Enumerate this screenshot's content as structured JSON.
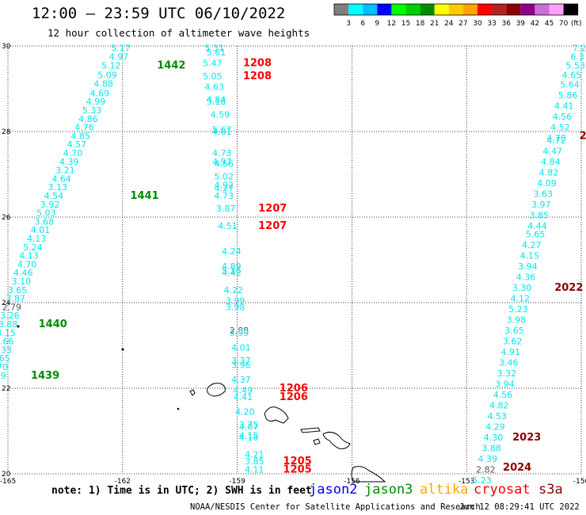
{
  "title": "12:00 – 23:59 UTC 06/10/2022",
  "subtitle": "12 hour collection of altimeter wave heights",
  "colorbar": {
    "colors": [
      "#7f7f7f",
      "#00ffff",
      "#00bfff",
      "#0000ff",
      "#00ff00",
      "#00cd00",
      "#008b00",
      "#ffff00",
      "#ffcc00",
      "#ffa500",
      "#ff0000",
      "#b22222",
      "#8b0000",
      "#8b008b",
      "#c86fd8",
      "#ffa0ff",
      "#000000"
    ],
    "labels": [
      "3",
      "6",
      "9",
      "12",
      "15",
      "18",
      "21",
      "24",
      "27",
      "30",
      "33",
      "36",
      "39",
      "42",
      "45",
      "70"
    ],
    "unit": "(ft)"
  },
  "axes": {
    "lon_ticks": [
      "-165",
      "-162",
      "-159",
      "-156",
      "-153",
      "-150"
    ],
    "lat_ticks": [
      "30",
      "28",
      "26",
      "24",
      "22",
      "20"
    ]
  },
  "footer": {
    "note": "note: 1) Time is in UTC; 2) SWH is in feet",
    "legend": [
      {
        "name": "jason2",
        "color": "#0000ff"
      },
      {
        "name": "jason3",
        "color": "#008b00"
      },
      {
        "name": "altika",
        "color": "#ffa500"
      },
      {
        "name": "cryosat",
        "color": "#ff0000"
      },
      {
        "name": "s3a",
        "color": "#8b0000"
      }
    ],
    "credit": "NOAA/NESDIS Center for Satellite Applications and Research",
    "timestamp": "Jun 12 08:29:41 UTC 2022"
  },
  "chart_data": {
    "type": "scatter",
    "xlim": [
      -165,
      -150
    ],
    "ylim": [
      20,
      30
    ],
    "grid": true,
    "tracks": [
      {
        "satellite": "jason3",
        "color": "#00e5ee",
        "points": [
          {
            "lon": -162.05,
            "lat": 29.95,
            "v": "5.17"
          },
          {
            "lon": -162.1,
            "lat": 29.75,
            "v": "4.97"
          },
          {
            "lon": -162.3,
            "lat": 29.55,
            "v": "5.12"
          },
          {
            "lon": -162.4,
            "lat": 29.32,
            "v": "5.09"
          },
          {
            "lon": -162.5,
            "lat": 29.12,
            "v": "4.88"
          },
          {
            "lon": -162.6,
            "lat": 28.9,
            "v": "4.69"
          },
          {
            "lon": -162.7,
            "lat": 28.7,
            "v": "4.99"
          },
          {
            "lon": -162.8,
            "lat": 28.5,
            "v": "5.33"
          },
          {
            "lon": -162.9,
            "lat": 28.3,
            "v": "4.86"
          },
          {
            "lon": -163.0,
            "lat": 28.1,
            "v": "4.76"
          },
          {
            "lon": -163.1,
            "lat": 27.9,
            "v": "4.85"
          },
          {
            "lon": -163.2,
            "lat": 27.7,
            "v": "4.57"
          },
          {
            "lon": -163.3,
            "lat": 27.5,
            "v": "4.70"
          },
          {
            "lon": -163.4,
            "lat": 27.3,
            "v": "4.39"
          },
          {
            "lon": -163.5,
            "lat": 27.1,
            "v": "3.21"
          },
          {
            "lon": -163.6,
            "lat": 26.9,
            "v": "4.64"
          },
          {
            "lon": -163.7,
            "lat": 26.7,
            "v": "3.13"
          },
          {
            "lon": -163.8,
            "lat": 26.5,
            "v": "4.54"
          },
          {
            "lon": -163.9,
            "lat": 26.3,
            "v": "3.92"
          },
          {
            "lon": -164.0,
            "lat": 26.1,
            "v": "5.03"
          },
          {
            "lon": -164.05,
            "lat": 25.9,
            "v": "3.68"
          },
          {
            "lon": -164.15,
            "lat": 25.7,
            "v": "4.01"
          },
          {
            "lon": -164.25,
            "lat": 25.5,
            "v": "4.13"
          },
          {
            "lon": -164.35,
            "lat": 25.3,
            "v": "5.24"
          },
          {
            "lon": -164.45,
            "lat": 25.1,
            "v": "4.13"
          },
          {
            "lon": -164.5,
            "lat": 24.9,
            "v": "4.70"
          },
          {
            "lon": -164.6,
            "lat": 24.7,
            "v": "4.46"
          },
          {
            "lon": -164.65,
            "lat": 24.5,
            "v": "3.10"
          },
          {
            "lon": -164.75,
            "lat": 24.3,
            "v": "3.65"
          },
          {
            "lon": -164.8,
            "lat": 24.1,
            "v": "3.87"
          },
          {
            "lon": -164.9,
            "lat": 23.9,
            "v": "2.79",
            "gray": true
          },
          {
            "lon": -164.95,
            "lat": 23.7,
            "v": "3.26"
          },
          {
            "lon": -165.0,
            "lat": 23.5,
            "v": "3.88"
          },
          {
            "lon": -165.05,
            "lat": 23.3,
            "v": "3.15"
          },
          {
            "lon": -165.1,
            "lat": 23.1,
            "v": "3.66"
          },
          {
            "lon": -165.15,
            "lat": 22.9,
            "v": "3.33"
          },
          {
            "lon": -165.2,
            "lat": 22.7,
            "v": "3.65"
          },
          {
            "lon": -165.25,
            "lat": 22.5,
            "v": "3.70"
          },
          {
            "lon": -165.3,
            "lat": 22.3,
            "v": "4.29"
          }
        ]
      },
      {
        "satellite": "cryosat",
        "color": "#00e5ee",
        "points": [
          {
            "lon": -159.6,
            "lat": 29.95,
            "v": "5.31"
          },
          {
            "lon": -159.55,
            "lat": 29.85,
            "v": "5.61"
          },
          {
            "lon": -159.65,
            "lat": 29.6,
            "v": "5.47"
          },
          {
            "lon": -159.65,
            "lat": 29.3,
            "v": "5.05"
          },
          {
            "lon": -159.6,
            "lat": 29.05,
            "v": "4.63"
          },
          {
            "lon": -159.55,
            "lat": 28.75,
            "v": "4.84"
          },
          {
            "lon": -159.55,
            "lat": 28.7,
            "v": "5.18"
          },
          {
            "lon": -159.45,
            "lat": 28.4,
            "v": "4.59"
          },
          {
            "lon": -159.4,
            "lat": 28.05,
            "v": "5.67"
          },
          {
            "lon": -159.4,
            "lat": 28.0,
            "v": "4.61"
          },
          {
            "lon": -159.4,
            "lat": 27.5,
            "v": "4.73"
          },
          {
            "lon": -159.4,
            "lat": 27.3,
            "v": "4.97"
          },
          {
            "lon": -159.35,
            "lat": 27.25,
            "v": "4.56"
          },
          {
            "lon": -159.35,
            "lat": 26.95,
            "v": "5.02"
          },
          {
            "lon": -159.35,
            "lat": 26.75,
            "v": "4.92"
          },
          {
            "lon": -159.35,
            "lat": 26.68,
            "v": "4.27"
          },
          {
            "lon": -159.35,
            "lat": 26.5,
            "v": "4.73"
          },
          {
            "lon": -159.3,
            "lat": 26.2,
            "v": "3.87"
          },
          {
            "lon": -159.25,
            "lat": 25.8,
            "v": "4.51"
          },
          {
            "lon": -159.15,
            "lat": 25.2,
            "v": "4.24"
          },
          {
            "lon": -159.15,
            "lat": 24.85,
            "v": "4.89"
          },
          {
            "lon": -159.15,
            "lat": 24.75,
            "v": "5.16"
          },
          {
            "lon": -159.15,
            "lat": 24.7,
            "v": "4.42"
          },
          {
            "lon": -159.1,
            "lat": 24.3,
            "v": "4.22"
          },
          {
            "lon": -159.05,
            "lat": 24.05,
            "v": "3.99"
          },
          {
            "lon": -159.05,
            "lat": 23.9,
            "v": "3.98"
          },
          {
            "lon": -158.95,
            "lat": 23.35,
            "v": "2.88",
            "gray": true
          },
          {
            "lon": -158.95,
            "lat": 23.3,
            "v": "3.99"
          },
          {
            "lon": -158.9,
            "lat": 22.95,
            "v": "4.01"
          },
          {
            "lon": -158.9,
            "lat": 22.65,
            "v": "3.37"
          },
          {
            "lon": -158.9,
            "lat": 22.55,
            "v": "3.96"
          },
          {
            "lon": -158.9,
            "lat": 22.2,
            "v": "4.37"
          },
          {
            "lon": -158.85,
            "lat": 21.95,
            "v": "4.49"
          },
          {
            "lon": -158.85,
            "lat": 21.8,
            "v": "4.41"
          },
          {
            "lon": -158.8,
            "lat": 21.45,
            "v": "4.20"
          },
          {
            "lon": -158.7,
            "lat": 21.15,
            "v": "3.75"
          },
          {
            "lon": -158.7,
            "lat": 21.1,
            "v": "4.07"
          },
          {
            "lon": -158.7,
            "lat": 20.9,
            "v": "4.15"
          },
          {
            "lon": -158.7,
            "lat": 20.85,
            "v": "4.18"
          },
          {
            "lon": -158.55,
            "lat": 20.45,
            "v": "4.21"
          },
          {
            "lon": -158.55,
            "lat": 20.3,
            "v": "3.85"
          },
          {
            "lon": -158.55,
            "lat": 20.1,
            "v": "4.11"
          }
        ]
      },
      {
        "satellite": "s3a",
        "color": "#00e5ee",
        "points": [
          {
            "lon": -150.05,
            "lat": 29.95,
            "v": "7.2"
          },
          {
            "lon": -150.1,
            "lat": 29.75,
            "v": "6.3"
          },
          {
            "lon": -150.15,
            "lat": 29.55,
            "v": "5.53"
          },
          {
            "lon": -150.25,
            "lat": 29.32,
            "v": "4.65"
          },
          {
            "lon": -150.3,
            "lat": 29.1,
            "v": "5.64"
          },
          {
            "lon": -150.35,
            "lat": 28.85,
            "v": "5.86"
          },
          {
            "lon": -150.45,
            "lat": 28.6,
            "v": "4.41"
          },
          {
            "lon": -150.5,
            "lat": 28.35,
            "v": "4.56"
          },
          {
            "lon": -150.55,
            "lat": 28.1,
            "v": "4.52"
          },
          {
            "lon": -150.65,
            "lat": 27.85,
            "v": "4.70"
          },
          {
            "lon": -150.65,
            "lat": 27.8,
            "v": "4.72"
          },
          {
            "lon": -150.75,
            "lat": 27.55,
            "v": "4.47"
          },
          {
            "lon": -150.8,
            "lat": 27.3,
            "v": "4.84"
          },
          {
            "lon": -150.85,
            "lat": 27.05,
            "v": "4.82"
          },
          {
            "lon": -150.9,
            "lat": 26.8,
            "v": "4.09"
          },
          {
            "lon": -151.0,
            "lat": 26.55,
            "v": "3.63"
          },
          {
            "lon": -151.05,
            "lat": 26.3,
            "v": "3.97"
          },
          {
            "lon": -151.1,
            "lat": 26.05,
            "v": "3.85"
          },
          {
            "lon": -151.15,
            "lat": 25.8,
            "v": "4.44"
          },
          {
            "lon": -151.2,
            "lat": 25.6,
            "v": "5.65"
          },
          {
            "lon": -151.3,
            "lat": 25.35,
            "v": "4.27"
          },
          {
            "lon": -151.35,
            "lat": 25.1,
            "v": "4.15"
          },
          {
            "lon": -151.4,
            "lat": 24.85,
            "v": "3.94"
          },
          {
            "lon": -151.45,
            "lat": 24.6,
            "v": "4.36"
          },
          {
            "lon": -151.55,
            "lat": 24.35,
            "v": "3.30"
          },
          {
            "lon": -151.6,
            "lat": 24.1,
            "v": "4.12"
          },
          {
            "lon": -151.65,
            "lat": 23.85,
            "v": "5.23"
          },
          {
            "lon": -151.7,
            "lat": 23.6,
            "v": "3.98"
          },
          {
            "lon": -151.75,
            "lat": 23.35,
            "v": "3.65"
          },
          {
            "lon": -151.8,
            "lat": 23.1,
            "v": "3.62"
          },
          {
            "lon": -151.85,
            "lat": 22.85,
            "v": "4.91"
          },
          {
            "lon": -151.9,
            "lat": 22.6,
            "v": "3.46"
          },
          {
            "lon": -151.95,
            "lat": 22.35,
            "v": "3.32"
          },
          {
            "lon": -152.0,
            "lat": 22.1,
            "v": "3.94"
          },
          {
            "lon": -152.05,
            "lat": 21.85,
            "v": "4.56"
          },
          {
            "lon": -152.15,
            "lat": 21.6,
            "v": "4.82"
          },
          {
            "lon": -152.2,
            "lat": 21.35,
            "v": "4.53"
          },
          {
            "lon": -152.25,
            "lat": 21.1,
            "v": "4.29"
          },
          {
            "lon": -152.3,
            "lat": 20.85,
            "v": "4.30"
          },
          {
            "lon": -152.35,
            "lat": 20.6,
            "v": "3.88"
          },
          {
            "lon": -152.45,
            "lat": 20.35,
            "v": "4.39"
          },
          {
            "lon": -152.5,
            "lat": 20.1,
            "v": "2.82",
            "gray": true
          },
          {
            "lon": -152.6,
            "lat": 19.85,
            "v": "5.23"
          }
        ]
      }
    ],
    "time_labels": [
      {
        "lon": -161.1,
        "lat": 29.55,
        "text": "1442",
        "color": "#008b00"
      },
      {
        "lon": -161.8,
        "lat": 26.5,
        "text": "1441",
        "color": "#008b00"
      },
      {
        "lon": -164.2,
        "lat": 23.5,
        "text": "1440",
        "color": "#008b00"
      },
      {
        "lon": -164.4,
        "lat": 22.3,
        "text": "1439",
        "color": "#008b00"
      },
      {
        "lon": -158.85,
        "lat": 29.6,
        "text": "1208",
        "color": "#ff0000"
      },
      {
        "lon": -158.85,
        "lat": 29.3,
        "text": "1208",
        "color": "#ff0000"
      },
      {
        "lon": -158.45,
        "lat": 26.2,
        "text": "1207",
        "color": "#ff0000"
      },
      {
        "lon": -158.45,
        "lat": 25.8,
        "text": "1207",
        "color": "#ff0000"
      },
      {
        "lon": -157.9,
        "lat": 22.0,
        "text": "1206",
        "color": "#ff0000"
      },
      {
        "lon": -157.9,
        "lat": 21.8,
        "text": "1206",
        "color": "#ff0000"
      },
      {
        "lon": -157.8,
        "lat": 20.3,
        "text": "1205",
        "color": "#ff0000"
      },
      {
        "lon": -157.8,
        "lat": 20.1,
        "text": "1205",
        "color": "#ff0000"
      },
      {
        "lon": -150.05,
        "lat": 27.9,
        "text": "2",
        "color": "#8b0000"
      },
      {
        "lon": -150.7,
        "lat": 24.35,
        "text": "2022",
        "color": "#8b0000"
      },
      {
        "lon": -151.8,
        "lat": 20.85,
        "text": "2023",
        "color": "#8b0000"
      },
      {
        "lon": -152.05,
        "lat": 20.15,
        "text": "2024",
        "color": "#8b0000"
      }
    ]
  }
}
